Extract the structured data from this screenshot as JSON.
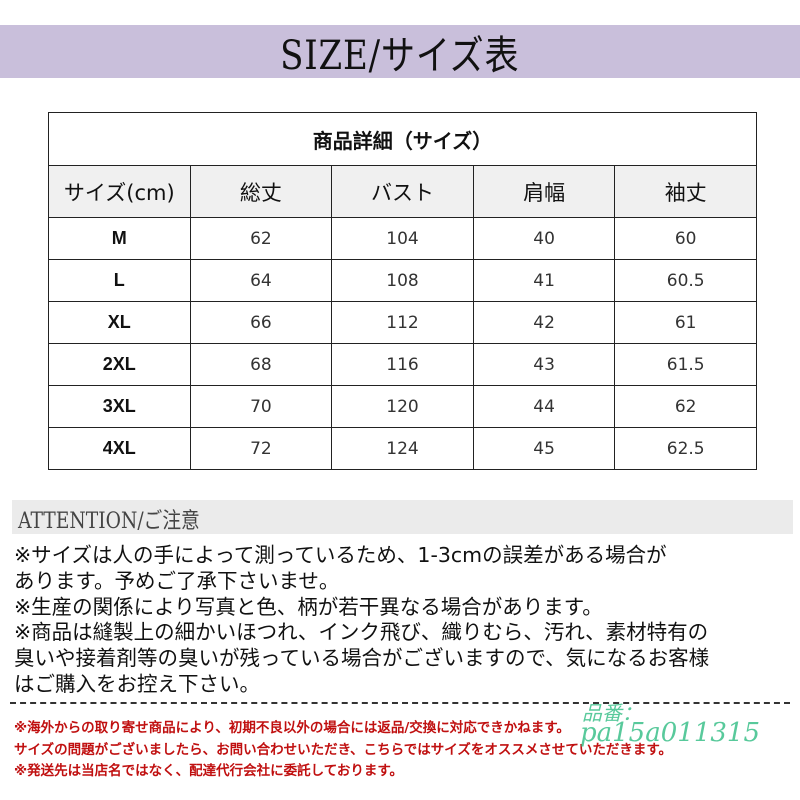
{
  "title": "SIZE/サイズ表",
  "table": {
    "caption": "商品詳細（サイズ）",
    "headers": [
      "サイズ(cm)",
      "総丈",
      "バスト",
      "肩幅",
      "袖丈"
    ],
    "rows": [
      [
        "M",
        "62",
        "104",
        "40",
        "60"
      ],
      [
        "L",
        "64",
        "108",
        "41",
        "60.5"
      ],
      [
        "XL",
        "66",
        "112",
        "42",
        "61"
      ],
      [
        "2XL",
        "68",
        "116",
        "43",
        "61.5"
      ],
      [
        "3XL",
        "70",
        "120",
        "44",
        "62"
      ],
      [
        "4XL",
        "72",
        "124",
        "45",
        "62.5"
      ]
    ]
  },
  "attention": {
    "heading": "ATTENTION/ご注意",
    "lines": [
      "※サイズは人の手によって測っているため、1-3cmの誤差がある場合が",
      "あります。予めご了承下さいませ。",
      "※生産の関係により写真と色、柄が若干異なる場合があります。",
      "※商品は縫製上の細かいほつれ、インク飛び、織りむら、汚れ、素材特有の",
      "臭いや接着剤等の臭いが残っている場合がございますので、気になるお客様",
      "はご購入をお控え下さい。"
    ]
  },
  "red_notes": [
    "※海外からの取り寄せ商品により、初期不良以外の場合には返品/交換に対応できかねます。",
    "サイズの問題がございましたら、お問い合わせいただき、こちらではサイズをオススメさせていただきます。",
    "※発送先は当店名ではなく、配達代行会社に委託しております。"
  ],
  "watermark": {
    "label": "品番：",
    "code": "pa15a011315"
  },
  "colors": {
    "title_band": "#c9bfdb",
    "attention_band": "#ebebeb",
    "red_text": "#c01010",
    "watermark": "#3cc08a"
  }
}
